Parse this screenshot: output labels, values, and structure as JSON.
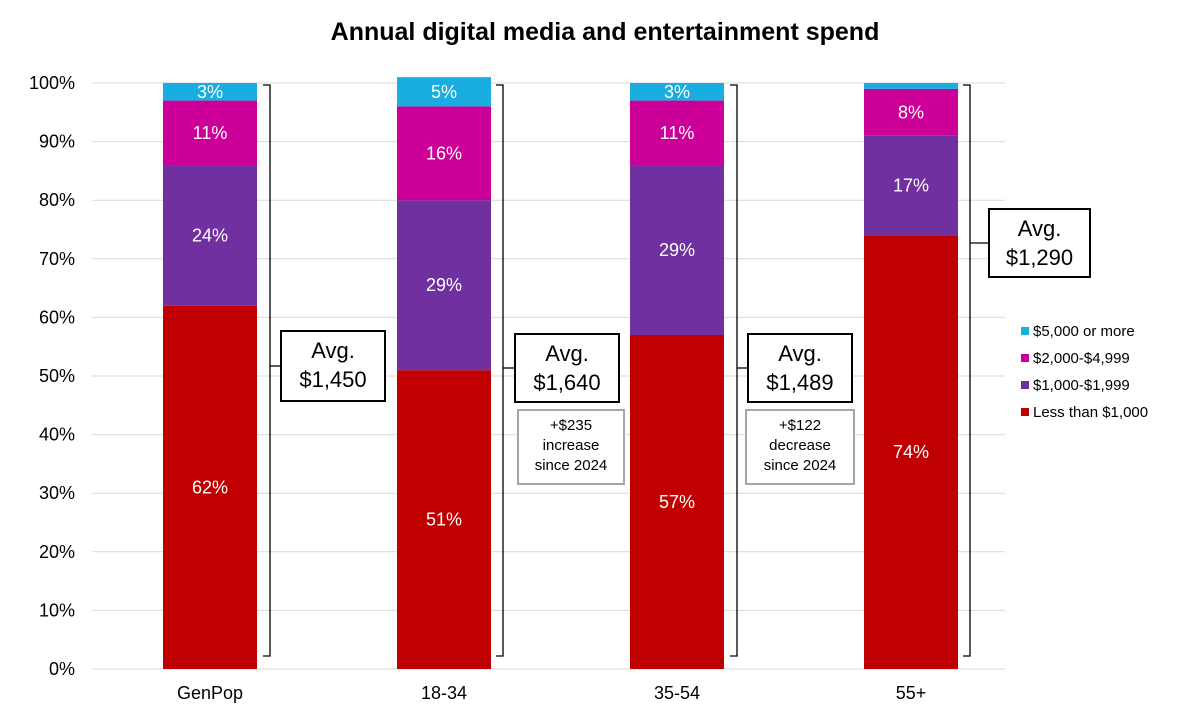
{
  "chart_data": {
    "type": "bar",
    "stacked": true,
    "title": "Annual digital media and entertainment spend",
    "categories": [
      "GenPop",
      "18-34",
      "35-54",
      "55+"
    ],
    "ylim": [
      0,
      100
    ],
    "yticks": [
      "0%",
      "10%",
      "20%",
      "30%",
      "40%",
      "50%",
      "60%",
      "70%",
      "80%",
      "90%",
      "100%"
    ],
    "series": [
      {
        "name": "Less than $1,000",
        "color": "#C00000",
        "values": [
          62,
          51,
          57,
          74
        ],
        "labels": [
          "62%",
          "51%",
          "57%",
          "74%"
        ]
      },
      {
        "name": "$1,000-$1,999",
        "color": "#7030A0",
        "values": [
          24,
          29,
          29,
          17
        ],
        "labels": [
          "24%",
          "29%",
          "29%",
          "17%"
        ]
      },
      {
        "name": "$2,000-$4,999",
        "color": "#CC0099",
        "values": [
          11,
          16,
          11,
          8
        ],
        "labels": [
          "11%",
          "16%",
          "11%",
          "8%"
        ]
      },
      {
        "name": "$5,000 or more",
        "color": "#1AADE0",
        "values": [
          3,
          5,
          3,
          1
        ],
        "labels": [
          "3%",
          "5%",
          "3%",
          ""
        ]
      }
    ],
    "legend_position": "right",
    "annotations": [
      {
        "category": "GenPop",
        "avg_line1": "Avg.",
        "avg_line2": "$1,450",
        "note": []
      },
      {
        "category": "18-34",
        "avg_line1": "Avg.",
        "avg_line2": "$1,640",
        "note": [
          "+$235",
          "increase",
          "since 2024"
        ]
      },
      {
        "category": "35-54",
        "avg_line1": "Avg.",
        "avg_line2": "$1,489",
        "note": [
          "+$122",
          "decrease",
          "since 2024"
        ]
      },
      {
        "category": "55+",
        "avg_line1": "Avg.",
        "avg_line2": "$1,290",
        "note": []
      }
    ]
  }
}
